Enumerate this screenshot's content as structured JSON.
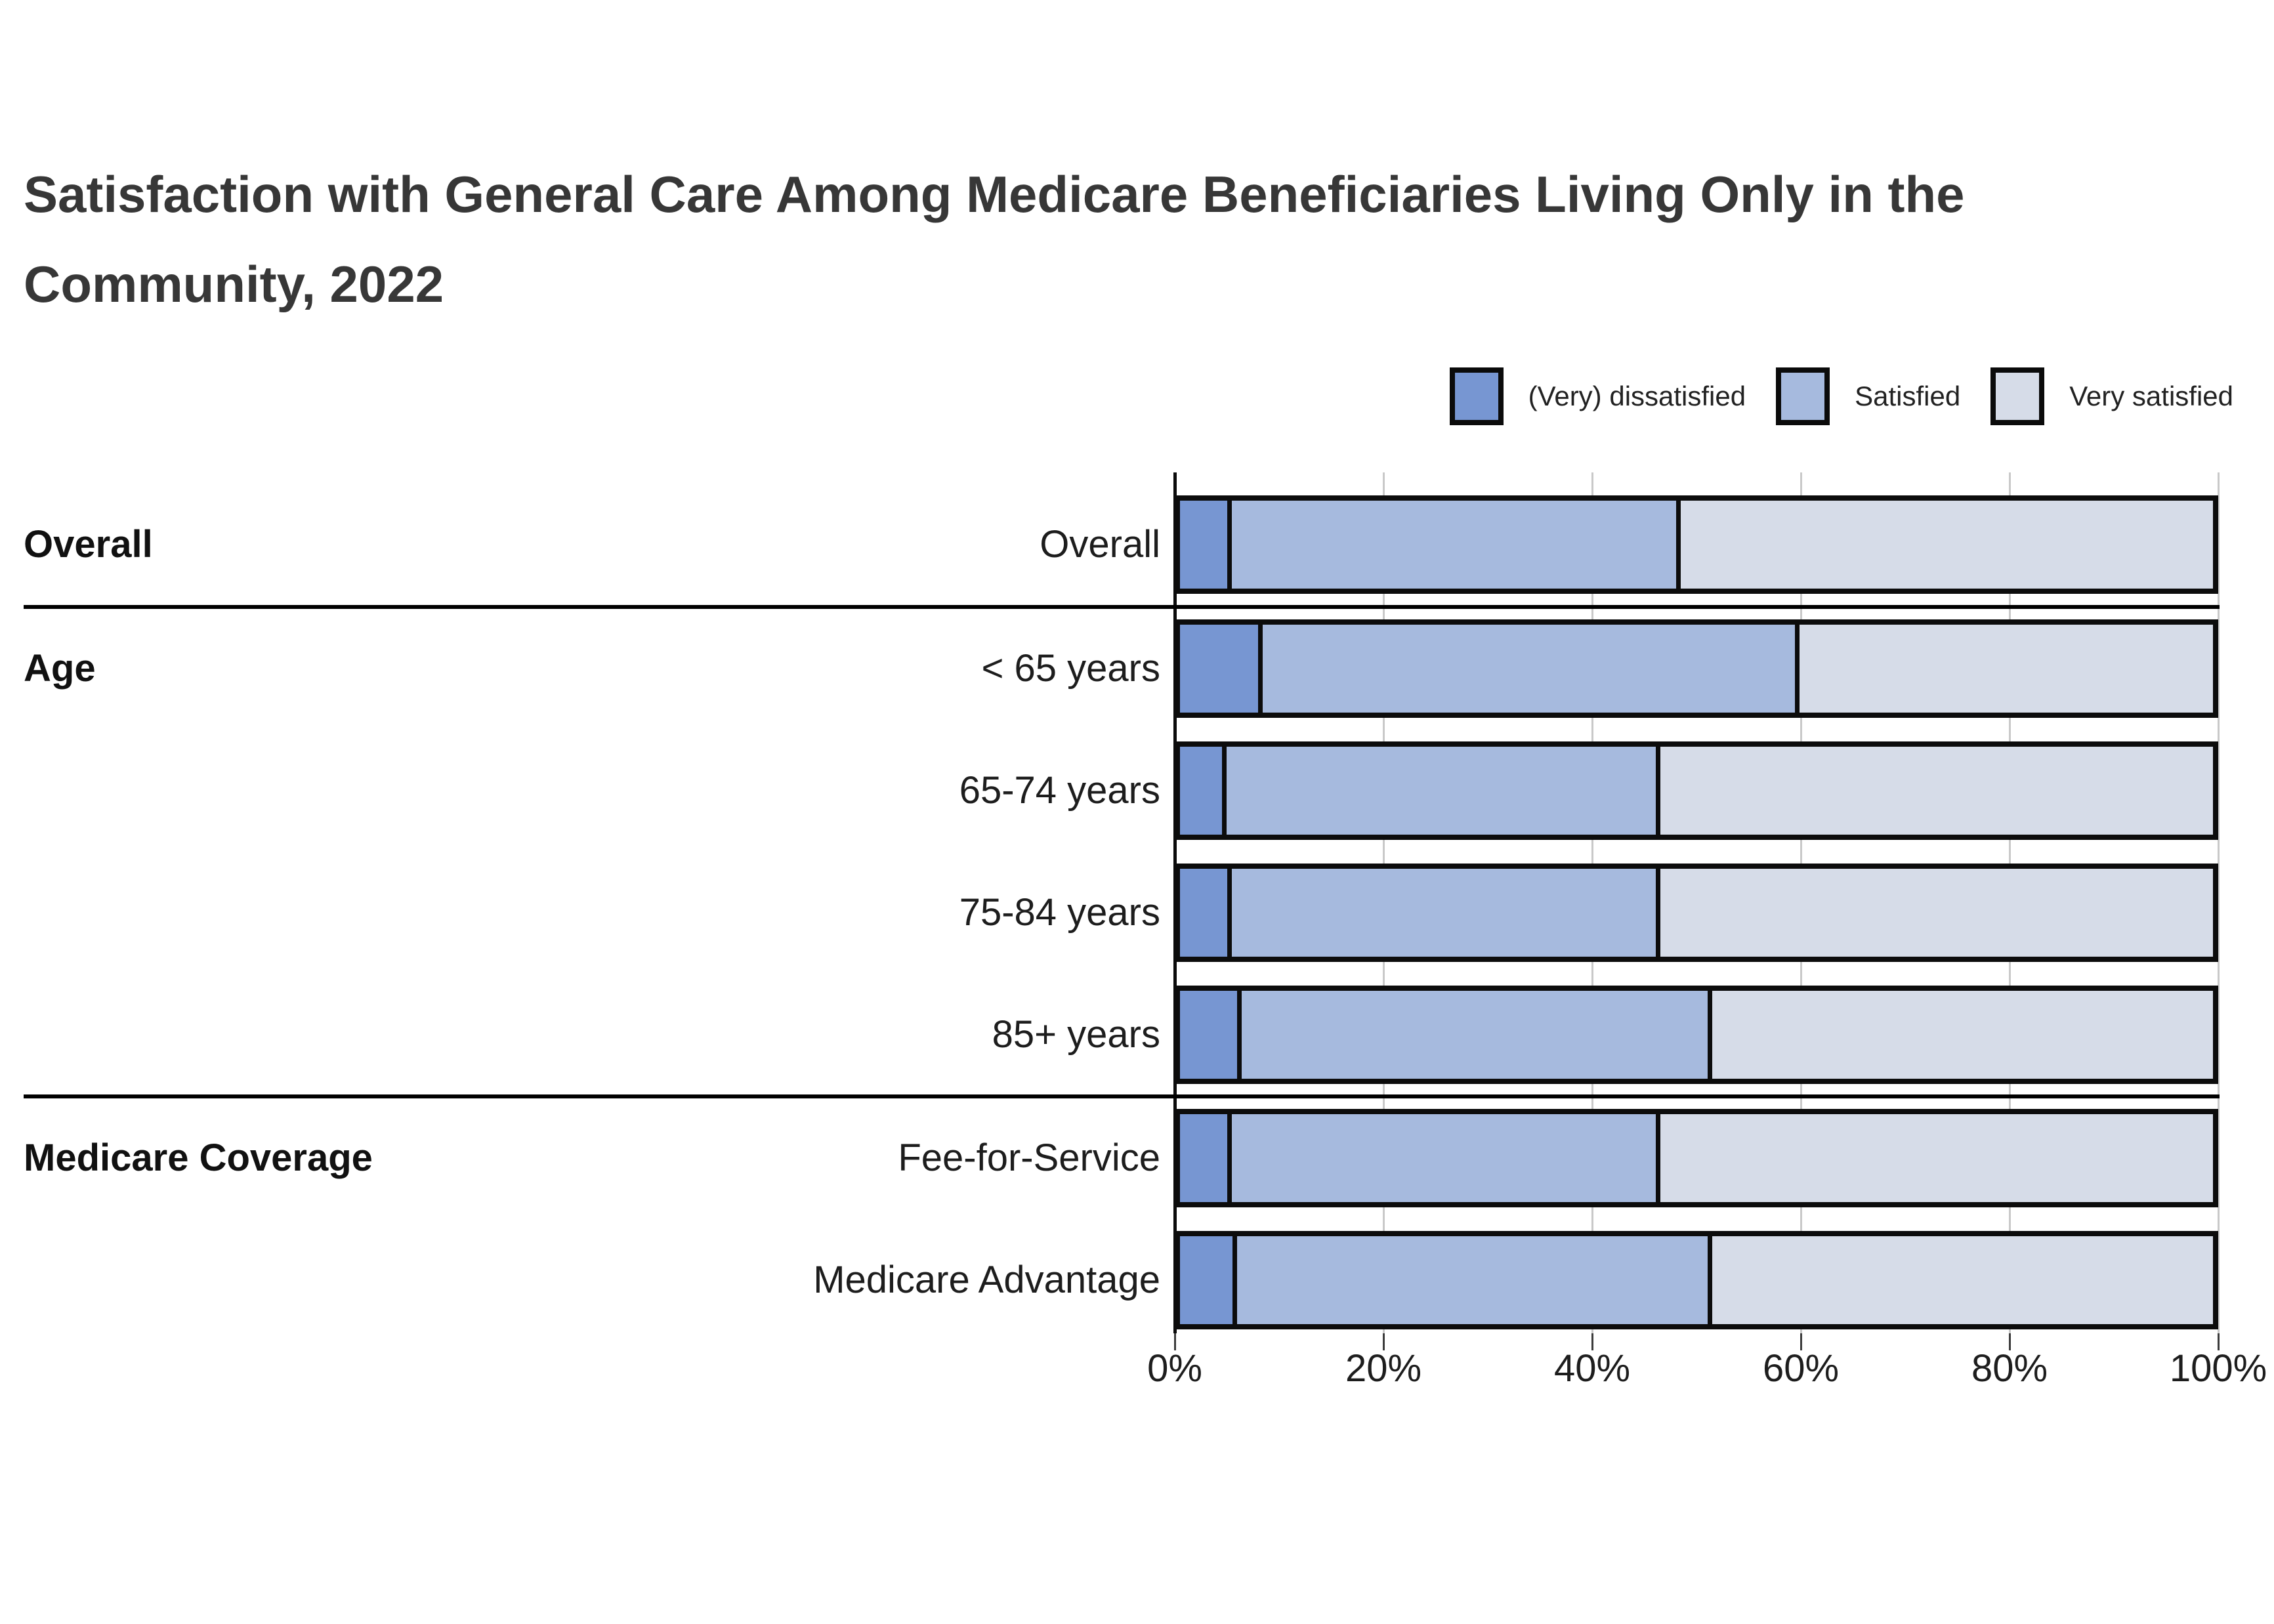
{
  "title": {
    "line1": "Satisfaction with General Care Among Medicare Beneficiaries Living Only in the",
    "line2": "Community, 2022"
  },
  "legend": {
    "items": [
      {
        "label": "(Very) dissatisfied",
        "color": "#7796d2"
      },
      {
        "label": "Satisfied",
        "color": "#a6bade"
      },
      {
        "label": "Very satisfied",
        "color": "#d6dce8"
      }
    ]
  },
  "chart_data": {
    "type": "bar",
    "orientation": "horizontal",
    "stacked": true,
    "unit": "percent",
    "title": "Satisfaction with General Care Among Medicare Beneficiaries Living Only in the Community, 2022",
    "categories": [
      "Overall",
      "< 65 years",
      "65-74 years",
      "75-84 years",
      "85+ years",
      "Fee-for-Service",
      "Medicare Advantage"
    ],
    "groups": [
      {
        "label": "Overall",
        "rows": [
          0
        ]
      },
      {
        "label": "Age",
        "rows": [
          1,
          2,
          3,
          4
        ]
      },
      {
        "label": "Medicare Coverage",
        "rows": [
          5,
          6
        ]
      }
    ],
    "series": [
      {
        "name": "(Very) dissatisfied",
        "color": "#7796d2",
        "values": [
          5,
          8,
          4.5,
          5,
          6,
          5,
          5.5
        ]
      },
      {
        "name": "Satisfied",
        "color": "#a6bade",
        "values": [
          43.5,
          52,
          42,
          41.5,
          45.5,
          41.5,
          46
        ]
      },
      {
        "name": "Very satisfied",
        "color": "#d6dce8",
        "values": [
          51.5,
          40,
          53.5,
          53.5,
          48.5,
          53.5,
          48.5
        ]
      }
    ],
    "x_axis": {
      "tick_labels": [
        "0%",
        "20%",
        "40%",
        "60%",
        "80%",
        "100%"
      ],
      "tick_values": [
        0,
        20,
        40,
        60,
        80,
        100
      ],
      "range": [
        0,
        100
      ],
      "grid": true
    },
    "legend_position": "top-right",
    "colors": {
      "bar_outline": "#0c0c0c",
      "gridline": "#c9c9c9",
      "separator": "#000000",
      "title_text": "#373737",
      "label_text": "#1d1d1d"
    }
  }
}
